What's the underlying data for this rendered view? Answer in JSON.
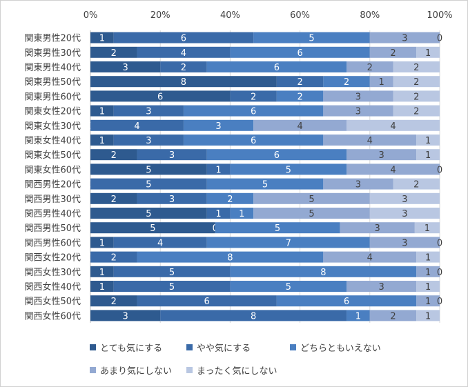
{
  "chart_data": {
    "type": "bar",
    "orientation": "horizontal",
    "stacked": "percent",
    "title": "",
    "xlabel": "",
    "ylabel": "",
    "xlim": [
      0,
      100
    ],
    "x_tick_labels": [
      "0%",
      "20%",
      "40%",
      "60%",
      "80%",
      "100%"
    ],
    "grid": true,
    "legend_position": "bottom",
    "categories": [
      "関東男性20代",
      "関東男性30代",
      "関東男性40代",
      "関東男性50代",
      "関東男性60代",
      "関東女性20代",
      "関東女性30代",
      "関東女性40代",
      "関東女性50代",
      "関東女性60代",
      "関西男性20代",
      "関西男性30代",
      "関西男性40代",
      "関西男性50代",
      "関西男性60代",
      "関西女性20代",
      "関西女性30代",
      "関西女性40代",
      "関西女性50代",
      "関西女性60代"
    ],
    "series": [
      {
        "name": "とても気にする",
        "color": "#2e5a8f",
        "values": [
          1,
          2,
          3,
          8,
          6,
          1,
          0,
          1,
          2,
          5,
          0,
          2,
          5,
          5,
          1,
          0,
          1,
          1,
          2,
          3
        ]
      },
      {
        "name": "やや気にする",
        "color": "#3a6aa8",
        "values": [
          6,
          4,
          2,
          2,
          2,
          3,
          4,
          3,
          3,
          1,
          5,
          3,
          1,
          0,
          4,
          2,
          5,
          5,
          6,
          8
        ]
      },
      {
        "name": "どちらともいえない",
        "color": "#4a7fc1",
        "values": [
          5,
          6,
          6,
          2,
          2,
          6,
          3,
          6,
          6,
          5,
          5,
          2,
          1,
          5,
          7,
          8,
          8,
          5,
          6,
          1
        ]
      },
      {
        "name": "あまり気にしない",
        "color": "#93a9d2",
        "values": [
          3,
          2,
          2,
          1,
          3,
          3,
          4,
          4,
          3,
          4,
          3,
          5,
          5,
          3,
          3,
          4,
          1,
          3,
          1,
          2
        ]
      },
      {
        "name": "まったく気にしない",
        "color": "#b9c7e2",
        "values": [
          0,
          1,
          2,
          2,
          2,
          2,
          4,
          1,
          1,
          0,
          2,
          3,
          3,
          1,
          0,
          1,
          0,
          1,
          0,
          1
        ]
      }
    ]
  }
}
